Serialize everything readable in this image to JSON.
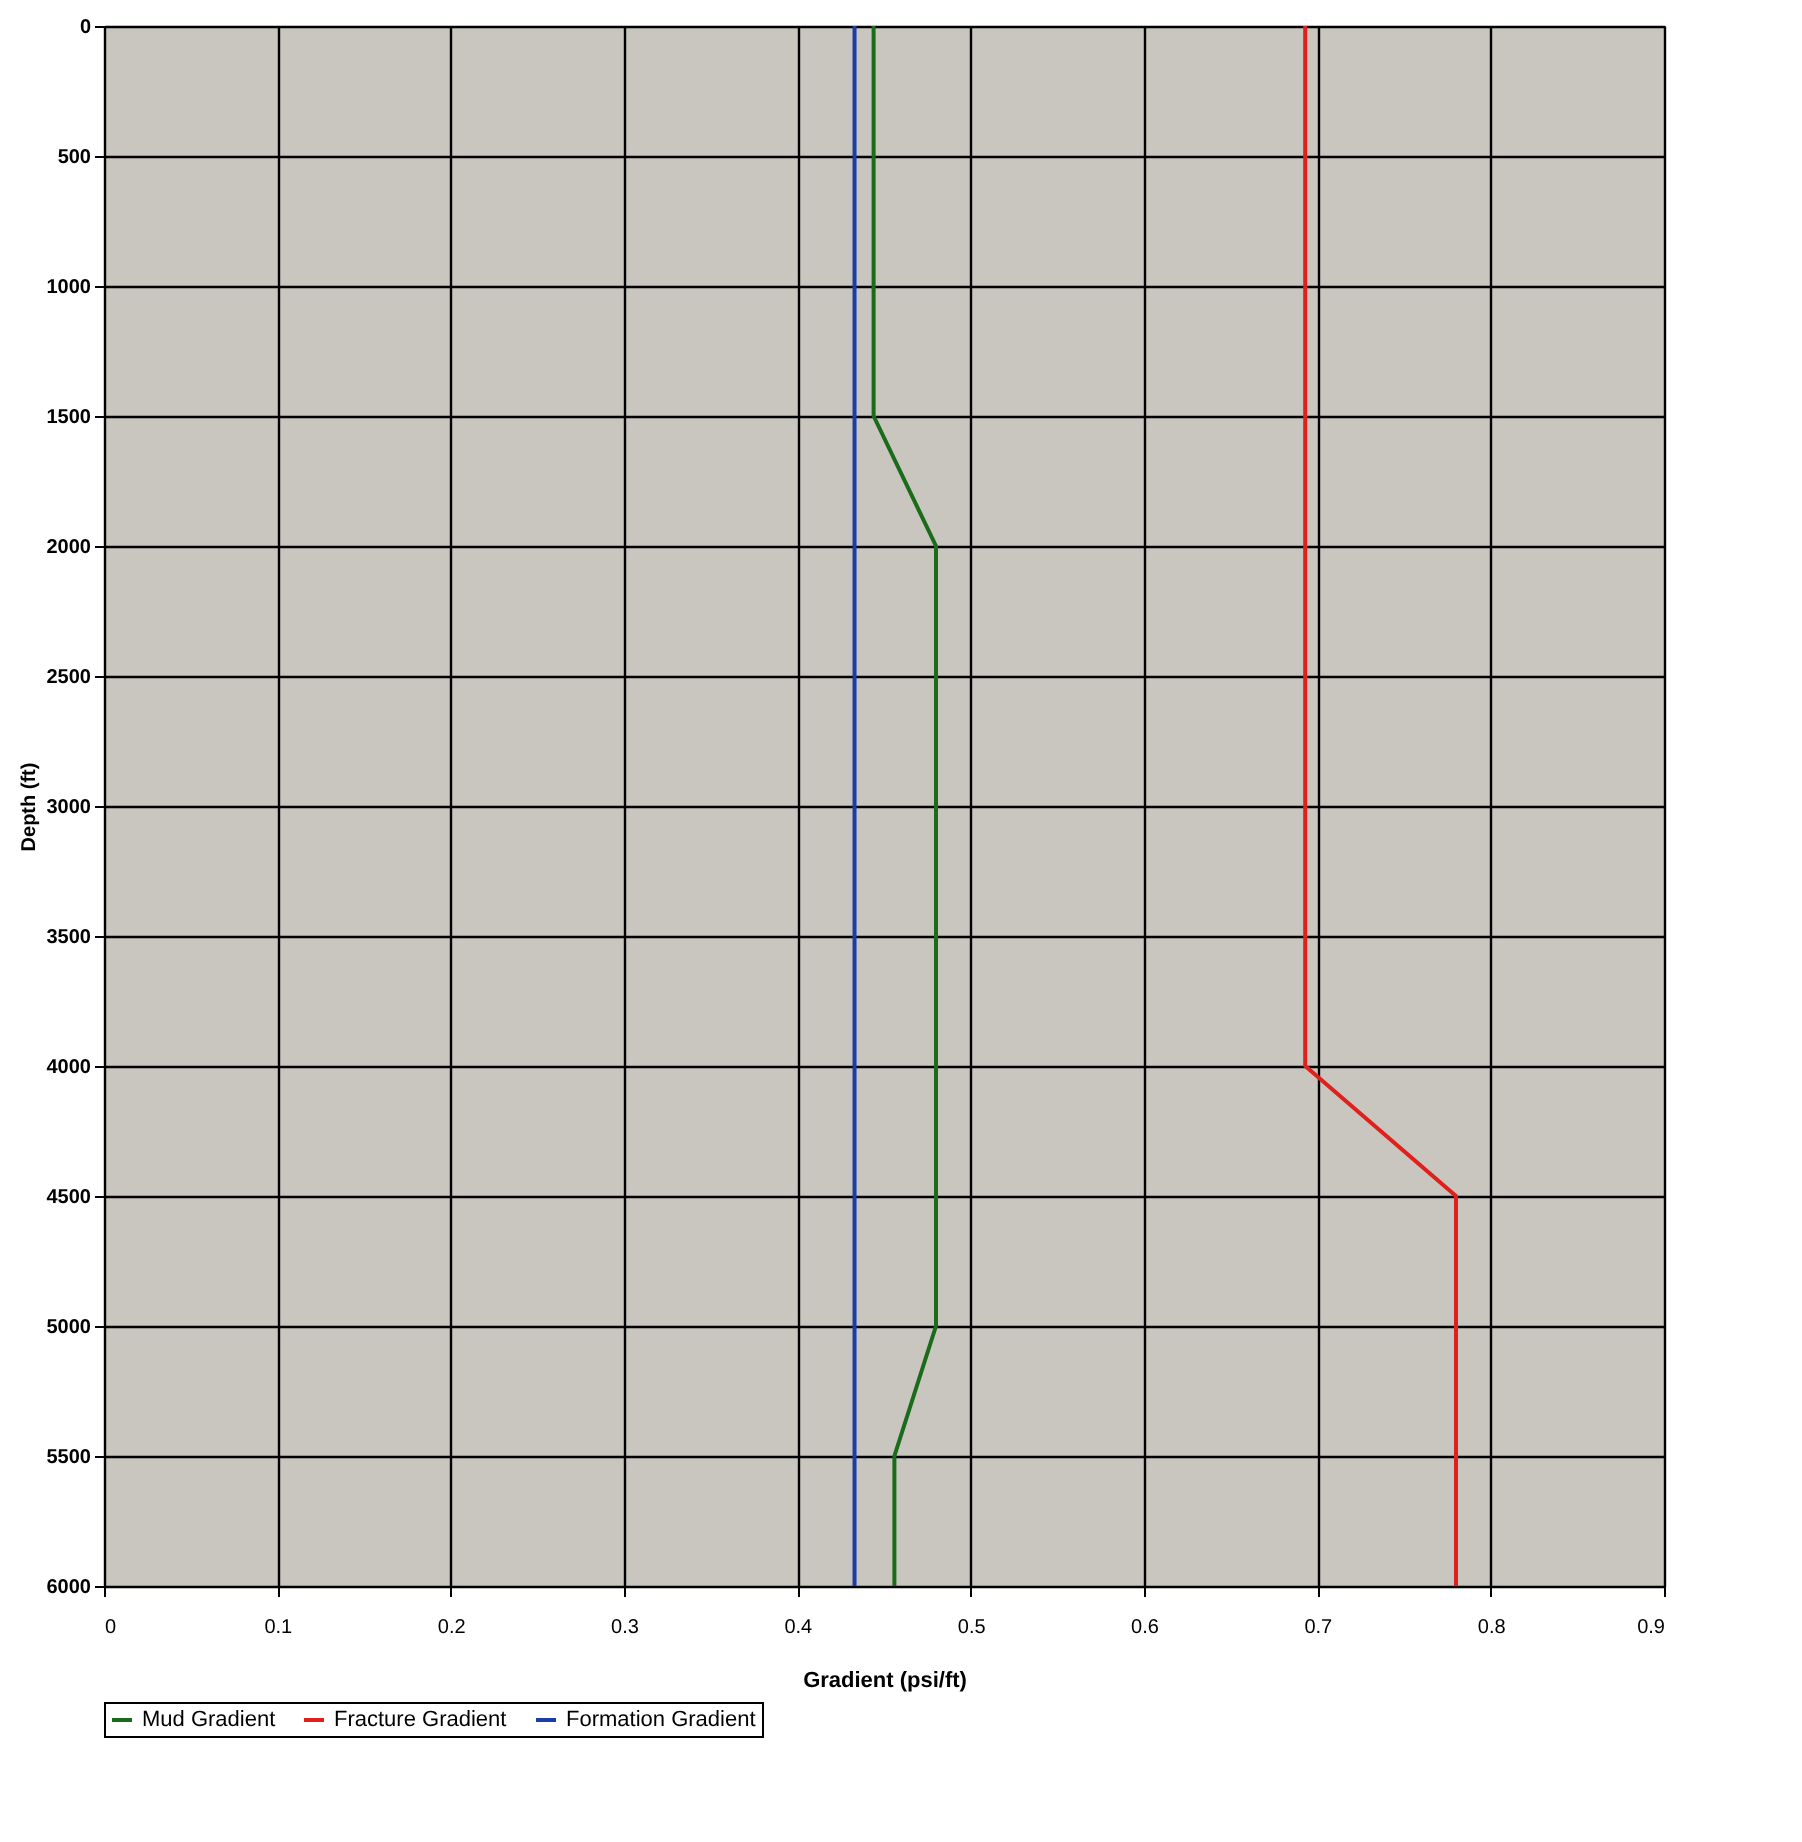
{
  "chart_data": {
    "type": "line",
    "xlabel": "Gradient (psi/ft)",
    "ylabel": "Depth (ft)",
    "series": [
      {
        "name": "Mud Gradient",
        "color": "#1a6b1a",
        "x": [
          0.444,
          0.444,
          0.48,
          0.48,
          0.456,
          0.456
        ],
        "values": [
          0,
          1500,
          2000,
          5000,
          5500,
          6000
        ]
      },
      {
        "name": "Fracture Gradient",
        "color": "#e0201c",
        "x": [
          0.693,
          0.693,
          0.78,
          0.78
        ],
        "values": [
          0,
          4000,
          4500,
          6000
        ]
      },
      {
        "name": "Formation Gradient",
        "color": "#1c3ca8",
        "x": [
          0.433,
          0.433
        ],
        "values": [
          0,
          6000
        ]
      }
    ],
    "xlim": [
      0,
      0.9
    ],
    "xticks": [
      0,
      0.1,
      0.2,
      0.3,
      0.4,
      0.5,
      0.6,
      0.7,
      0.8,
      0.9
    ],
    "ylim": [
      6000,
      0
    ],
    "yticks": [
      0,
      500,
      1000,
      1500,
      2000,
      2500,
      3000,
      3500,
      4000,
      4500,
      5000,
      5500,
      6000
    ],
    "grid": true,
    "legend": "bottom",
    "marker": "none",
    "line_style": "solid"
  }
}
